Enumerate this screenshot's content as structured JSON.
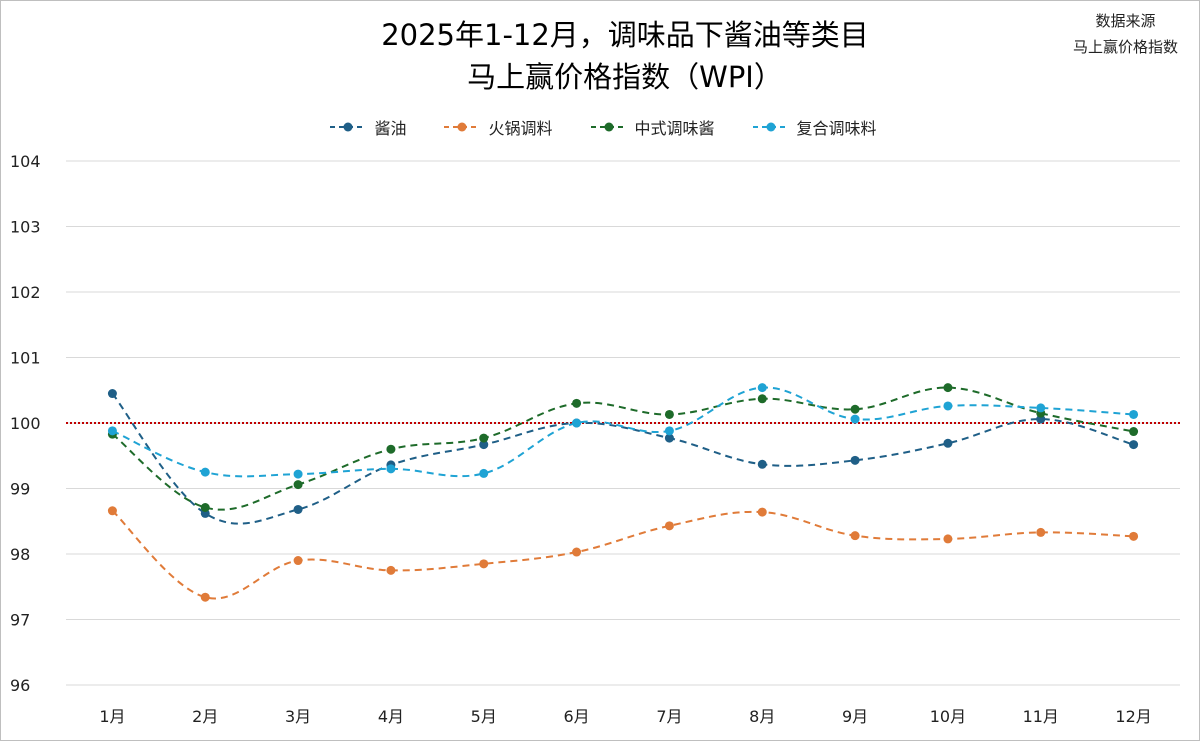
{
  "source": {
    "line1": "数据来源",
    "line2": "马上赢价格指数"
  },
  "chart_data": {
    "type": "line",
    "title_line1": "2025年1-12月，调味品下酱油等类目",
    "title_line2": "马上赢价格指数（WPI）",
    "categories": [
      "1月",
      "2月",
      "3月",
      "4月",
      "5月",
      "6月",
      "7月",
      "8月",
      "9月",
      "10月",
      "11月",
      "12月"
    ],
    "ylim": [
      96,
      104
    ],
    "yticks": [
      96,
      97,
      98,
      99,
      100,
      101,
      102,
      103,
      104
    ],
    "reference_line": 100,
    "reference_color": "#c00000",
    "grid": true,
    "legend_position": "top",
    "series": [
      {
        "name": "酱油",
        "color": "#1f5f87",
        "values": [
          100.45,
          98.62,
          98.68,
          99.36,
          99.67,
          100.0,
          99.77,
          99.37,
          99.43,
          99.69,
          100.06,
          99.67
        ]
      },
      {
        "name": "火锅调料",
        "color": "#e07b39",
        "values": [
          98.66,
          97.34,
          97.9,
          97.75,
          97.85,
          98.03,
          98.43,
          98.64,
          98.28,
          98.23,
          98.33,
          98.27
        ]
      },
      {
        "name": "中式调味酱",
        "color": "#1e6b2a",
        "values": [
          99.83,
          98.71,
          99.06,
          99.6,
          99.77,
          100.3,
          100.13,
          100.37,
          100.21,
          100.54,
          100.15,
          99.87
        ]
      },
      {
        "name": "复合调味料",
        "color": "#1fa3d4",
        "values": [
          99.88,
          99.25,
          99.22,
          99.3,
          99.23,
          100.0,
          99.88,
          100.54,
          100.06,
          100.26,
          100.23,
          100.13
        ]
      }
    ]
  }
}
